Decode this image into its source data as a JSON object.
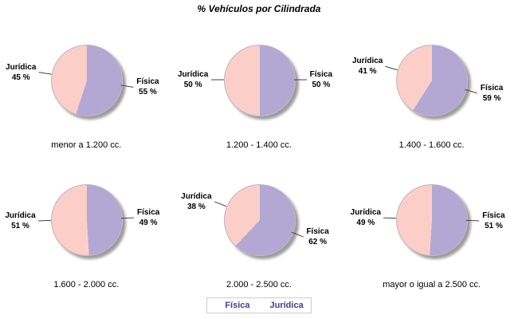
{
  "title": "% Vehículos por Cilindrada",
  "colors": {
    "fisica": "#b3a8d3",
    "juridica": "#fbcfc8",
    "shadow": "#9c9c9c",
    "legend_text": "#4a3b8f",
    "leader_line": "#444444"
  },
  "legend": {
    "items": [
      {
        "label": "Física",
        "color": "#b3a8d3"
      },
      {
        "label": "Jurídica",
        "color": "#fbcfc8"
      }
    ]
  },
  "chart_data": {
    "type": "pie",
    "title": "% Vehículos por Cilindrada",
    "unit": "%",
    "series_labels": [
      "Física",
      "Jurídica"
    ],
    "layout": "2 rows x 3 columns, labels with leader lines, caption under each pie, legend bottom center",
    "charts": [
      {
        "caption": "menor a 1.200 cc.",
        "fisica": 55,
        "juridica": 45
      },
      {
        "caption": "1.200 - 1.400 cc.",
        "fisica": 50,
        "juridica": 50
      },
      {
        "caption": "1.400 - 1.600 cc.",
        "fisica": 59,
        "juridica": 41
      },
      {
        "caption": "1.600 - 2.000 cc.",
        "fisica": 49,
        "juridica": 51
      },
      {
        "caption": "2.000 - 2.500 cc.",
        "fisica": 62,
        "juridica": 38
      },
      {
        "caption": "mayor o igual a 2.500 cc.",
        "fisica": 51,
        "juridica": 49
      }
    ]
  }
}
